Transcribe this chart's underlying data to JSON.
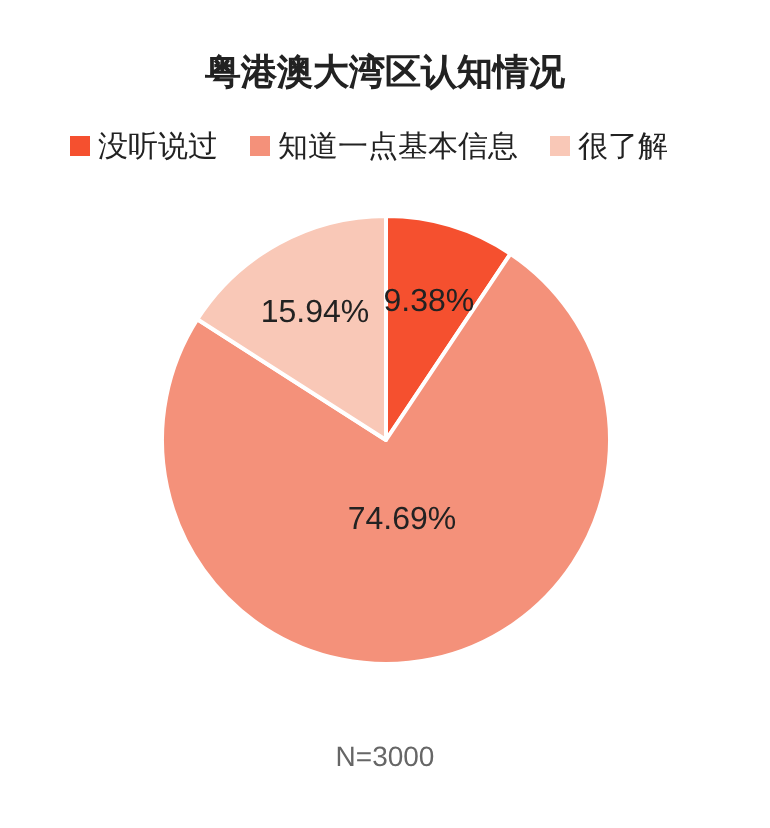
{
  "chart_data": {
    "type": "pie",
    "title": "粤港澳大湾区认知情况",
    "categories": [
      "没听说过",
      "知道一点基本信息",
      "很了解"
    ],
    "values": [
      9.38,
      74.69,
      15.94
    ],
    "colors": [
      "#f5502f",
      "#f4917a",
      "#f9c8b7"
    ],
    "value_labels": [
      "9.38%",
      "74.69%",
      "15.94%"
    ],
    "legend": "top",
    "annotations": [
      "N=3000"
    ]
  }
}
